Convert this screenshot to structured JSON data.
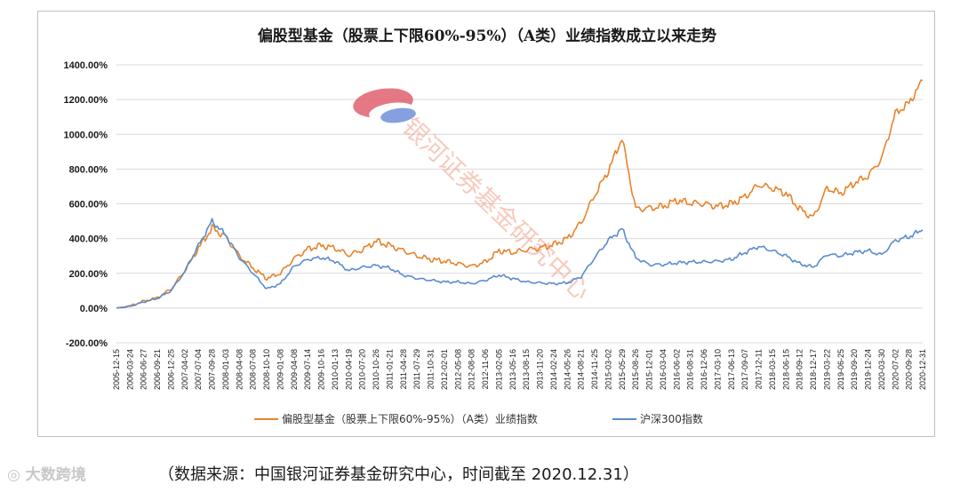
{
  "chart_data": {
    "type": "line",
    "title": "偏股型基金（股票上下限60%-95%）（A类）业绩指数成立以来走势",
    "xlabel": "",
    "ylabel": "",
    "ylim": [
      -200,
      1400
    ],
    "ytick_labels": [
      "1400.00%",
      "1200.00%",
      "1000.00%",
      "800.00%",
      "600.00%",
      "400.00%",
      "200.00%",
      "0.00%",
      "-200.00%"
    ],
    "ytick_values": [
      1400,
      1200,
      1000,
      800,
      600,
      400,
      200,
      0,
      -200
    ],
    "grid": true,
    "legend_position": "bottom",
    "x": [
      "2005-12-15",
      "2006-03-24",
      "2006-06-27",
      "2006-09-21",
      "2006-12-25",
      "2007-04-02",
      "2007-07-04",
      "2007-09-28",
      "2008-01-03",
      "2008-04-08",
      "2008-07-08",
      "2008-10-10",
      "2009-01-08",
      "2009-04-08",
      "2009-07-14",
      "2009-10-16",
      "2010-01-13",
      "2010-04-19",
      "2010-07-20",
      "2010-10-26",
      "2011-01-21",
      "2011-04-28",
      "2011-07-29",
      "2011-10-31",
      "2012-02-01",
      "2012-05-08",
      "2012-08-08",
      "2012-11-06",
      "2013-02-05",
      "2013-05-16",
      "2013-08-15",
      "2013-11-20",
      "2014-02-24",
      "2014-05-26",
      "2014-08-21",
      "2014-11-25",
      "2015-03-02",
      "2015-05-29",
      "2015-08-26",
      "2015-12-01",
      "2016-03-04",
      "2016-06-02",
      "2016-08-31",
      "2016-12-06",
      "2017-03-10",
      "2017-06-13",
      "2017-09-07",
      "2017-12-11",
      "2018-03-15",
      "2018-06-15",
      "2018-09-12",
      "2018-12-17",
      "2019-03-22",
      "2019-06-25",
      "2019-09-20",
      "2019-12-24",
      "2020-03-30",
      "2020-07-02",
      "2020-09-28",
      "2020-12-31"
    ],
    "series": [
      {
        "name": "偏股型基金（股票上下限60%-95%）（A类）业绩指数",
        "color": "#e8832a",
        "values": [
          0,
          12,
          40,
          60,
          110,
          215,
          345,
          460,
          410,
          300,
          230,
          170,
          200,
          285,
          340,
          360,
          345,
          305,
          335,
          385,
          360,
          330,
          300,
          280,
          270,
          255,
          240,
          265,
          330,
          320,
          335,
          345,
          365,
          400,
          490,
          650,
          790,
          980,
          570,
          575,
          585,
          620,
          605,
          600,
          585,
          600,
          640,
          710,
          690,
          660,
          570,
          520,
          690,
          660,
          720,
          760,
          860,
          1120,
          1180,
          1310
        ]
      },
      {
        "name": "沪深300指数",
        "color": "#5b8ccf",
        "values": [
          0,
          10,
          35,
          55,
          100,
          210,
          360,
          500,
          420,
          290,
          200,
          110,
          140,
          240,
          280,
          290,
          270,
          215,
          235,
          245,
          230,
          190,
          170,
          160,
          150,
          150,
          140,
          160,
          190,
          170,
          150,
          145,
          140,
          145,
          180,
          290,
          390,
          455,
          290,
          250,
          250,
          260,
          265,
          265,
          270,
          280,
          320,
          355,
          330,
          300,
          255,
          235,
          310,
          300,
          320,
          330,
          305,
          390,
          410,
          450
        ]
      }
    ]
  },
  "watermark": {
    "text": "银河证券基金研究中心"
  },
  "footer": {
    "brand": "大数跨境",
    "source": "（数据来源：中国银河证券基金研究中心，时间截至 2020.12.31）"
  }
}
